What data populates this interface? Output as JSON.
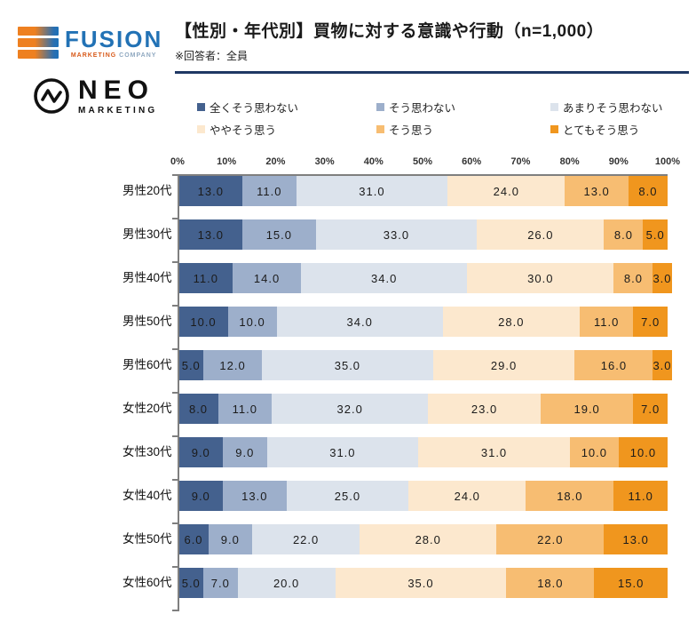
{
  "header": {
    "fusion_logo": {
      "name": "FUSION",
      "tagline_marketing": "MARKETING",
      "tagline_company": "COMPANY"
    },
    "neo_logo": {
      "name": "NEO",
      "tagline": "MARKETING"
    },
    "title": "【性別・年代別】買物に対する意識や行動（n=1,000）",
    "subtitle": "※回答者：全員"
  },
  "colors": {
    "divider": "#1f3864",
    "axis": "#7f7f7f",
    "fusion_orange": "#ee8020",
    "fusion_blue": "#2272b5"
  },
  "chart_data": {
    "type": "bar",
    "stacked": true,
    "orientation": "horizontal",
    "title": "【性別・年代別】買物に対する意識や行動（n=1,000）",
    "note": "※回答者：全員",
    "x_axis_ticks": [
      "0%",
      "10%",
      "20%",
      "30%",
      "40%",
      "50%",
      "60%",
      "70%",
      "80%",
      "90%",
      "100%"
    ],
    "xlim": [
      0,
      100
    ],
    "value_suffix": "",
    "categories": [
      "男性20代",
      "男性30代",
      "男性40代",
      "男性50代",
      "男性60代",
      "女性20代",
      "女性30代",
      "女性40代",
      "女性50代",
      "女性60代"
    ],
    "series": [
      {
        "name": "全くそう思わない",
        "color": "#44618e",
        "values": [
          13.0,
          13.0,
          11.0,
          10.0,
          5.0,
          8.0,
          9.0,
          9.0,
          6.0,
          5.0
        ]
      },
      {
        "name": "そう思わない",
        "color": "#9dafcb",
        "values": [
          11.0,
          15.0,
          14.0,
          10.0,
          12.0,
          11.0,
          9.0,
          13.0,
          9.0,
          7.0
        ]
      },
      {
        "name": "あまりそう思わない",
        "color": "#dce3ec",
        "values": [
          31.0,
          33.0,
          34.0,
          34.0,
          35.0,
          32.0,
          31.0,
          25.0,
          22.0,
          20.0
        ]
      },
      {
        "name": "ややそう思う",
        "color": "#fce8ce",
        "values": [
          24.0,
          26.0,
          30.0,
          28.0,
          29.0,
          23.0,
          31.0,
          24.0,
          28.0,
          35.0
        ]
      },
      {
        "name": "そう思う",
        "color": "#f7bd72",
        "values": [
          13.0,
          8.0,
          8.0,
          11.0,
          16.0,
          19.0,
          10.0,
          18.0,
          22.0,
          18.0
        ]
      },
      {
        "name": "とてもそう思う",
        "color": "#f0961e",
        "values": [
          8.0,
          5.0,
          3.0,
          7.0,
          3.0,
          7.0,
          10.0,
          11.0,
          13.0,
          15.0
        ]
      }
    ],
    "legend_position": "top",
    "grid": false
  }
}
